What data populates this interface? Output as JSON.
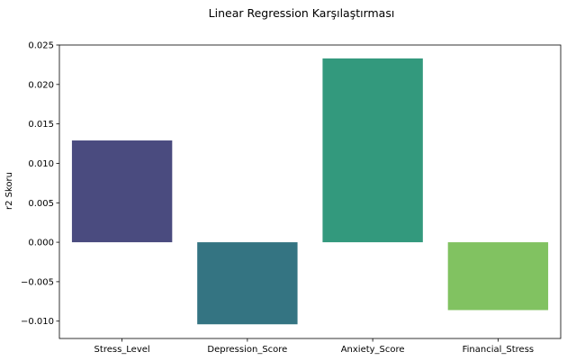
{
  "chart_data": {
    "type": "bar",
    "title": "Linear Regression Karşılaştırması",
    "xlabel": "",
    "ylabel": "r2 Skoru",
    "categories": [
      "Stress_Level",
      "Depression_Score",
      "Anxiety_Score",
      "Financial_Stress"
    ],
    "values": [
      0.0129,
      -0.0104,
      0.0233,
      -0.0086
    ],
    "colors": [
      "#4a4b7f",
      "#347482",
      "#33997d",
      "#81c261"
    ],
    "ylim": [
      -0.0122,
      0.025
    ],
    "yticks": [
      -0.01,
      -0.005,
      0.0,
      0.005,
      0.01,
      0.015,
      0.02,
      0.025
    ],
    "ytick_labels": [
      "−0.010",
      "−0.005",
      "0.000",
      "0.005",
      "0.010",
      "0.015",
      "0.020",
      "0.025"
    ],
    "grid": false,
    "legend": "none"
  }
}
